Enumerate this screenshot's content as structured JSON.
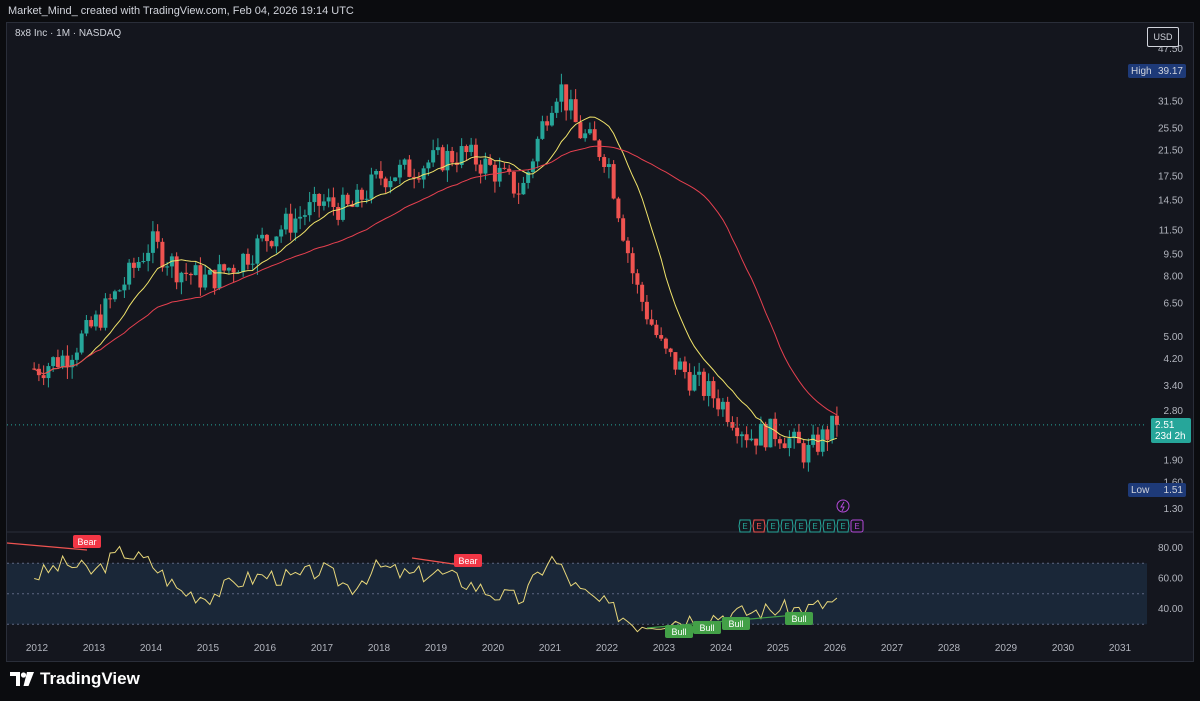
{
  "header": {
    "attribution": "Market_Mind_ created with TradingView.com, Feb 04, 2026 19:14 UTC"
  },
  "chart": {
    "symbol_title": "8x8 Inc · 1M · NASDAQ",
    "currency": "USD",
    "high_label": "High",
    "high_value": "39.17",
    "low_label": "Low",
    "low_value": "1.51",
    "last_price": "2.51",
    "countdown": "23d 2h",
    "price_ticks": [
      "47.50",
      "31.50",
      "25.50",
      "21.50",
      "17.50",
      "14.50",
      "11.50",
      "9.50",
      "8.00",
      "6.50",
      "5.00",
      "4.20",
      "3.40",
      "2.80",
      "1.90",
      "1.60",
      "1.30"
    ],
    "rsi_ticks": [
      "80.00",
      "60.00",
      "40.00"
    ],
    "x_ticks": [
      "2012",
      "2013",
      "2014",
      "2015",
      "2016",
      "2017",
      "2018",
      "2019",
      "2020",
      "2021",
      "2022",
      "2023",
      "2024",
      "2025",
      "2026",
      "2027",
      "2028",
      "2029",
      "2030",
      "2031"
    ],
    "rsi_labels": [
      {
        "text": "Bear",
        "kind": "bear"
      },
      {
        "text": "Bear",
        "kind": "bear"
      },
      {
        "text": "Bull",
        "kind": "bull"
      },
      {
        "text": "Bull",
        "kind": "bull"
      },
      {
        "text": "Bull",
        "kind": "bull"
      },
      {
        "text": "Bull",
        "kind": "bull"
      }
    ],
    "earnings_marker": "E",
    "colors": {
      "up": "#26a69a",
      "down": "#ef5350",
      "ma_fast": "#f0e36a",
      "ma_slow": "#e5404f",
      "rsi_line": "#e8d77a",
      "background": "#14161e"
    }
  },
  "chart_data": {
    "type": "line",
    "scale": "log",
    "title": "8x8 Inc · 1M · NASDAQ",
    "x": [
      "2012-01",
      "2012-07",
      "2013-01",
      "2013-07",
      "2014-01",
      "2014-07",
      "2015-01",
      "2015-07",
      "2016-01",
      "2016-07",
      "2017-01",
      "2017-07",
      "2018-01",
      "2018-07",
      "2019-01",
      "2019-07",
      "2020-01",
      "2020-07",
      "2021-01",
      "2021-03",
      "2021-07",
      "2022-01",
      "2022-07",
      "2023-01",
      "2023-07",
      "2024-01",
      "2024-07",
      "2025-01",
      "2025-07",
      "2026-01"
    ],
    "ylim": [
      1.2,
      50
    ],
    "series": [
      {
        "name": "",
        "values": [
          3.9,
          4.3,
          5.5,
          7.5,
          10.5,
          8.4,
          7.8,
          8.9,
          10.8,
          12.5,
          14.3,
          13.5,
          17.5,
          18.5,
          20.0,
          21.0,
          18.5,
          15.5,
          31.5,
          36.0,
          25.0,
          20.5,
          7.5,
          4.4,
          3.6,
          3.0,
          2.3,
          2.4,
          2.0,
          2.51
        ]
      }
    ],
    "high": 39.17,
    "low": 1.51,
    "last": 2.51,
    "rsi": {
      "ylim": [
        20,
        90
      ],
      "series": [
        {
          "name": "",
          "values": [
            62,
            70,
            64,
            78,
            70,
            52,
            48,
            58,
            62,
            60,
            66,
            54,
            68,
            62,
            64,
            58,
            50,
            46,
            74,
            68,
            52,
            42,
            30,
            32,
            34,
            36,
            38,
            40,
            40,
            45
          ]
        }
      ]
    }
  }
}
